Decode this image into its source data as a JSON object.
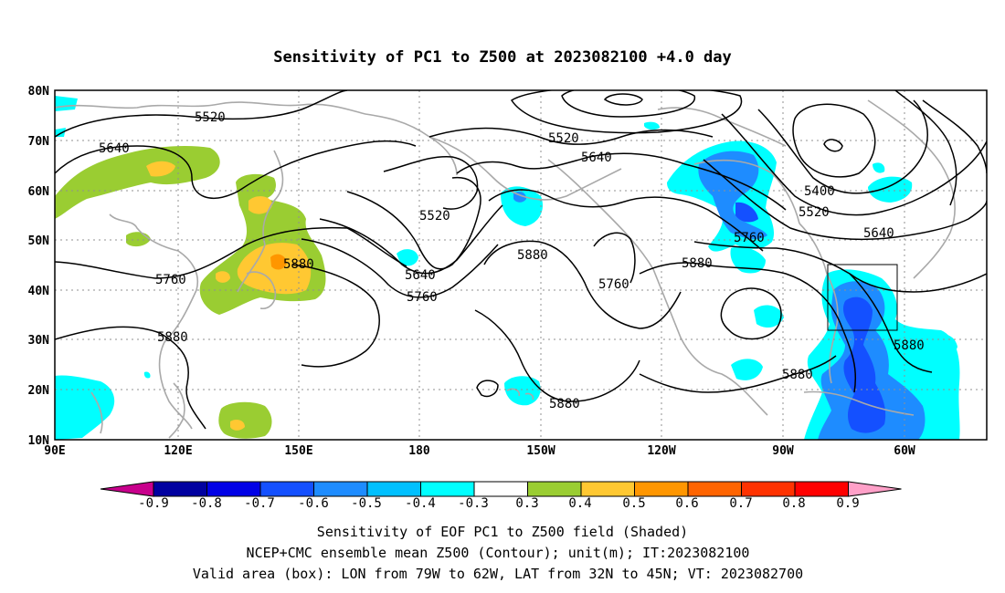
{
  "title": "Sensitivity of PC1 to Z500 at 2023082100 +4.0 day",
  "lat_labels": [
    "80N",
    "70N",
    "60N",
    "50N",
    "40N",
    "30N",
    "20N",
    "10N"
  ],
  "lon_labels": [
    "90E",
    "120E",
    "150E",
    "180",
    "150W",
    "120W",
    "90W",
    "60W"
  ],
  "contour_labels": [
    "5520",
    "5640",
    "5520",
    "5640",
    "5520",
    "5400",
    "5520",
    "5640",
    "5760",
    "5880",
    "5880",
    "5640",
    "5760",
    "5760",
    "5880",
    "5760",
    "5880",
    "5880",
    "5880",
    "5880"
  ],
  "colorbar": {
    "labels": [
      "-0.9",
      "-0.8",
      "-0.7",
      "-0.6",
      "-0.5",
      "-0.4",
      "-0.3",
      "0.3",
      "0.4",
      "0.5",
      "0.6",
      "0.7",
      "0.8",
      "0.9"
    ],
    "colors": [
      "#c8008c",
      "#0000a0",
      "#0000e6",
      "#1450ff",
      "#1e8cff",
      "#00c0ff",
      "#00ffff",
      "#ffffff",
      "#9acd32",
      "#ffc832",
      "#ff9600",
      "#ff6400",
      "#ff3200",
      "#ff0000",
      "#ffa0c8"
    ]
  },
  "captions": [
    "Sensitivity of EOF PC1 to Z500 field (Shaded)",
    "NCEP+CMC ensemble mean Z500 (Contour); unit(m); IT:2023082100",
    "Valid area (box): LON from 79W to 62W, LAT from 32N to 45N; VT: 2023082700"
  ],
  "valid_box": {
    "lon_min_w": 79,
    "lon_max_w": 62,
    "lat_min_n": 32,
    "lat_max_n": 45
  }
}
